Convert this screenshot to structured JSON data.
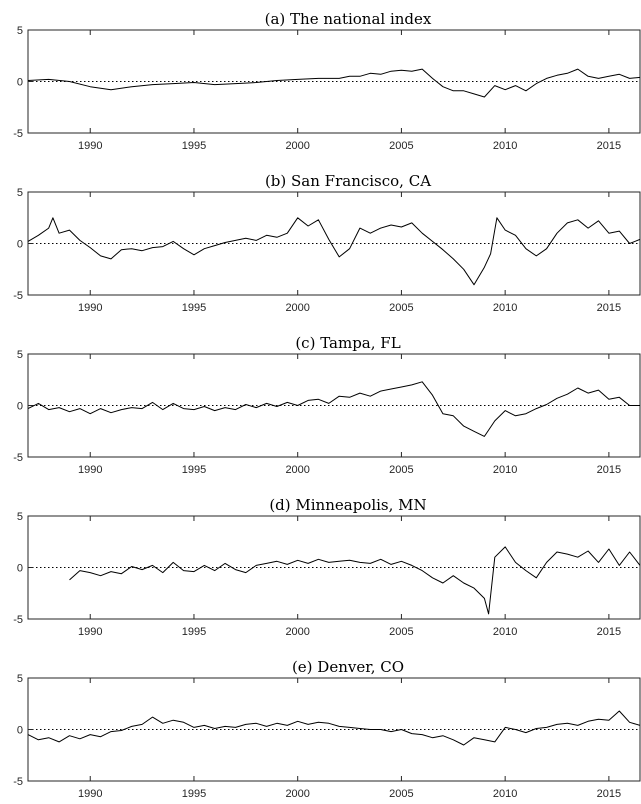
{
  "chart_data": [
    {
      "type": "line",
      "title": "(a) The national index",
      "xlim": [
        1987,
        2016.5
      ],
      "ylim": [
        -5,
        5
      ],
      "yticks": [
        -5,
        0,
        5
      ],
      "xticks": [
        1990,
        1995,
        2000,
        2005,
        2010,
        2015
      ],
      "x": [
        1987.0,
        1988.0,
        1989.0,
        1990.0,
        1991.0,
        1992.0,
        1993.0,
        1994.0,
        1995.0,
        1996.0,
        1997.0,
        1998.0,
        1999.0,
        2000.0,
        2001.0,
        2002.0,
        2002.5,
        2003.0,
        2003.5,
        2004.0,
        2004.5,
        2005.0,
        2005.5,
        2006.0,
        2006.5,
        2007.0,
        2007.5,
        2008.0,
        2008.5,
        2009.0,
        2009.5,
        2010.0,
        2010.5,
        2011.0,
        2011.5,
        2012.0,
        2012.5,
        2013.0,
        2013.5,
        2014.0,
        2014.5,
        2015.0,
        2015.5,
        2016.0,
        2016.5
      ],
      "y": [
        0.1,
        0.2,
        0.0,
        -0.5,
        -0.8,
        -0.5,
        -0.3,
        -0.2,
        -0.1,
        -0.3,
        -0.2,
        -0.1,
        0.1,
        0.2,
        0.3,
        0.3,
        0.5,
        0.5,
        0.8,
        0.7,
        1.0,
        1.1,
        1.0,
        1.2,
        0.3,
        -0.5,
        -0.9,
        -0.9,
        -1.2,
        -1.5,
        -0.4,
        -0.8,
        -0.4,
        -0.9,
        -0.2,
        0.3,
        0.6,
        0.8,
        1.2,
        0.5,
        0.3,
        0.5,
        0.7,
        0.3,
        0.4
      ]
    },
    {
      "type": "line",
      "title": "(b) San Francisco, CA",
      "xlim": [
        1987,
        2016.5
      ],
      "ylim": [
        -5,
        5
      ],
      "yticks": [
        -5,
        0,
        5
      ],
      "xticks": [
        1990,
        1995,
        2000,
        2005,
        2010,
        2015
      ],
      "x": [
        1987.0,
        1987.5,
        1988.0,
        1988.2,
        1988.5,
        1989.0,
        1989.5,
        1990.0,
        1990.5,
        1991.0,
        1991.5,
        1992.0,
        1992.5,
        1993.0,
        1993.5,
        1994.0,
        1994.5,
        1995.0,
        1995.5,
        1996.0,
        1996.5,
        1997.0,
        1997.5,
        1998.0,
        1998.5,
        1999.0,
        1999.5,
        2000.0,
        2000.5,
        2001.0,
        2001.5,
        2002.0,
        2002.5,
        2003.0,
        2003.5,
        2004.0,
        2004.5,
        2005.0,
        2005.5,
        2006.0,
        2006.5,
        2007.0,
        2007.5,
        2008.0,
        2008.5,
        2009.0,
        2009.3,
        2009.6,
        2010.0,
        2010.5,
        2011.0,
        2011.5,
        2012.0,
        2012.5,
        2013.0,
        2013.5,
        2014.0,
        2014.5,
        2015.0,
        2015.5,
        2016.0,
        2016.5
      ],
      "y": [
        0.2,
        0.8,
        1.5,
        2.5,
        1.0,
        1.3,
        0.3,
        -0.4,
        -1.2,
        -1.5,
        -0.6,
        -0.5,
        -0.7,
        -0.4,
        -0.3,
        0.2,
        -0.5,
        -1.1,
        -0.5,
        -0.2,
        0.1,
        0.3,
        0.5,
        0.3,
        0.8,
        0.6,
        1.0,
        2.5,
        1.7,
        2.3,
        0.4,
        -1.3,
        -0.5,
        1.5,
        1.0,
        1.5,
        1.8,
        1.6,
        2.0,
        1.0,
        0.2,
        -0.6,
        -1.5,
        -2.5,
        -4.0,
        -2.3,
        -1.0,
        2.5,
        1.3,
        0.8,
        -0.5,
        -1.2,
        -0.5,
        1.0,
        2.0,
        2.3,
        1.5,
        2.2,
        1.0,
        1.2,
        0.0,
        0.4
      ]
    },
    {
      "type": "line",
      "title": "(c) Tampa, FL",
      "xlim": [
        1987,
        2016.5
      ],
      "ylim": [
        -5,
        5
      ],
      "yticks": [
        -5,
        0,
        5
      ],
      "xticks": [
        1990,
        1995,
        2000,
        2005,
        2010,
        2015
      ],
      "x": [
        1987.0,
        1987.5,
        1988.0,
        1988.5,
        1989.0,
        1989.5,
        1990.0,
        1990.5,
        1991.0,
        1991.5,
        1992.0,
        1992.5,
        1993.0,
        1993.5,
        1994.0,
        1994.5,
        1995.0,
        1995.5,
        1996.0,
        1996.5,
        1997.0,
        1997.5,
        1998.0,
        1998.5,
        1999.0,
        1999.5,
        2000.0,
        2000.5,
        2001.0,
        2001.5,
        2002.0,
        2002.5,
        2003.0,
        2003.5,
        2004.0,
        2004.5,
        2005.0,
        2005.5,
        2006.0,
        2006.5,
        2007.0,
        2007.5,
        2008.0,
        2008.5,
        2009.0,
        2009.5,
        2010.0,
        2010.5,
        2011.0,
        2011.5,
        2012.0,
        2012.5,
        2013.0,
        2013.5,
        2014.0,
        2014.5,
        2015.0,
        2015.5,
        2016.0,
        2016.5
      ],
      "y": [
        -0.3,
        0.2,
        -0.4,
        -0.2,
        -0.6,
        -0.3,
        -0.8,
        -0.3,
        -0.7,
        -0.4,
        -0.2,
        -0.3,
        0.3,
        -0.4,
        0.2,
        -0.3,
        -0.4,
        -0.1,
        -0.5,
        -0.2,
        -0.4,
        0.1,
        -0.2,
        0.2,
        -0.1,
        0.3,
        0.0,
        0.5,
        0.6,
        0.2,
        0.9,
        0.8,
        1.2,
        0.9,
        1.4,
        1.6,
        1.8,
        2.0,
        2.3,
        1.0,
        -0.8,
        -1.0,
        -2.0,
        -2.5,
        -3.0,
        -1.5,
        -0.5,
        -1.0,
        -0.8,
        -0.3,
        0.1,
        0.7,
        1.1,
        1.7,
        1.2,
        1.5,
        0.6,
        0.8,
        0.0,
        0.0
      ]
    },
    {
      "type": "line",
      "title": "(d) Minneapolis, MN",
      "xlim": [
        1987,
        2016.5
      ],
      "ylim": [
        -5,
        5
      ],
      "yticks": [
        -5,
        0,
        5
      ],
      "xticks": [
        1990,
        1995,
        2000,
        2005,
        2010,
        2015
      ],
      "x": [
        1989.0,
        1989.5,
        1990.0,
        1990.5,
        1991.0,
        1991.5,
        1992.0,
        1992.5,
        1993.0,
        1993.5,
        1994.0,
        1994.5,
        1995.0,
        1995.5,
        1996.0,
        1996.5,
        1997.0,
        1997.5,
        1998.0,
        1998.5,
        1999.0,
        1999.5,
        2000.0,
        2000.5,
        2001.0,
        2001.5,
        2002.0,
        2002.5,
        2003.0,
        2003.5,
        2004.0,
        2004.5,
        2005.0,
        2005.5,
        2006.0,
        2006.5,
        2007.0,
        2007.5,
        2008.0,
        2008.5,
        2009.0,
        2009.2,
        2009.5,
        2010.0,
        2010.5,
        2011.0,
        2011.5,
        2012.0,
        2012.5,
        2013.0,
        2013.5,
        2014.0,
        2014.5,
        2015.0,
        2015.5,
        2016.0,
        2016.5
      ],
      "y": [
        -1.2,
        -0.3,
        -0.5,
        -0.8,
        -0.4,
        -0.6,
        0.1,
        -0.2,
        0.2,
        -0.5,
        0.5,
        -0.3,
        -0.4,
        0.2,
        -0.3,
        0.4,
        -0.2,
        -0.5,
        0.2,
        0.4,
        0.6,
        0.3,
        0.7,
        0.4,
        0.8,
        0.5,
        0.6,
        0.7,
        0.5,
        0.4,
        0.8,
        0.3,
        0.6,
        0.2,
        -0.3,
        -1.0,
        -1.5,
        -0.8,
        -1.5,
        -2.0,
        -3.0,
        -4.5,
        1.0,
        2.0,
        0.5,
        -0.3,
        -1.0,
        0.5,
        1.5,
        1.3,
        1.0,
        1.6,
        0.5,
        1.8,
        0.2,
        1.5,
        0.2
      ]
    },
    {
      "type": "line",
      "title": "(e) Denver, CO",
      "xlim": [
        1987,
        2016.5
      ],
      "ylim": [
        -5,
        5
      ],
      "yticks": [
        -5,
        0,
        5
      ],
      "xticks": [
        1990,
        1995,
        2000,
        2005,
        2010,
        2015
      ],
      "x": [
        1987.0,
        1987.5,
        1988.0,
        1988.5,
        1989.0,
        1989.5,
        1990.0,
        1990.5,
        1991.0,
        1991.5,
        1992.0,
        1992.5,
        1993.0,
        1993.5,
        1994.0,
        1994.5,
        1995.0,
        1995.5,
        1996.0,
        1996.5,
        1997.0,
        1997.5,
        1998.0,
        1998.5,
        1999.0,
        1999.5,
        2000.0,
        2000.5,
        2001.0,
        2001.5,
        2002.0,
        2002.5,
        2003.0,
        2003.5,
        2004.0,
        2004.5,
        2005.0,
        2005.5,
        2006.0,
        2006.5,
        2007.0,
        2007.5,
        2008.0,
        2008.5,
        2009.0,
        2009.5,
        2010.0,
        2010.5,
        2011.0,
        2011.5,
        2012.0,
        2012.5,
        2013.0,
        2013.5,
        2014.0,
        2014.5,
        2015.0,
        2015.5,
        2016.0,
        2016.5
      ],
      "y": [
        -0.5,
        -1.0,
        -0.8,
        -1.2,
        -0.6,
        -0.9,
        -0.5,
        -0.7,
        -0.2,
        -0.1,
        0.3,
        0.5,
        1.2,
        0.6,
        0.9,
        0.7,
        0.2,
        0.4,
        0.1,
        0.3,
        0.2,
        0.5,
        0.6,
        0.3,
        0.6,
        0.4,
        0.8,
        0.5,
        0.7,
        0.6,
        0.3,
        0.2,
        0.1,
        0.0,
        0.0,
        -0.2,
        0.0,
        -0.4,
        -0.5,
        -0.8,
        -0.6,
        -1.0,
        -1.5,
        -0.8,
        -1.0,
        -1.2,
        0.2,
        0.0,
        -0.3,
        0.1,
        0.2,
        0.5,
        0.6,
        0.4,
        0.8,
        1.0,
        0.9,
        1.8,
        0.7,
        0.4
      ]
    }
  ]
}
